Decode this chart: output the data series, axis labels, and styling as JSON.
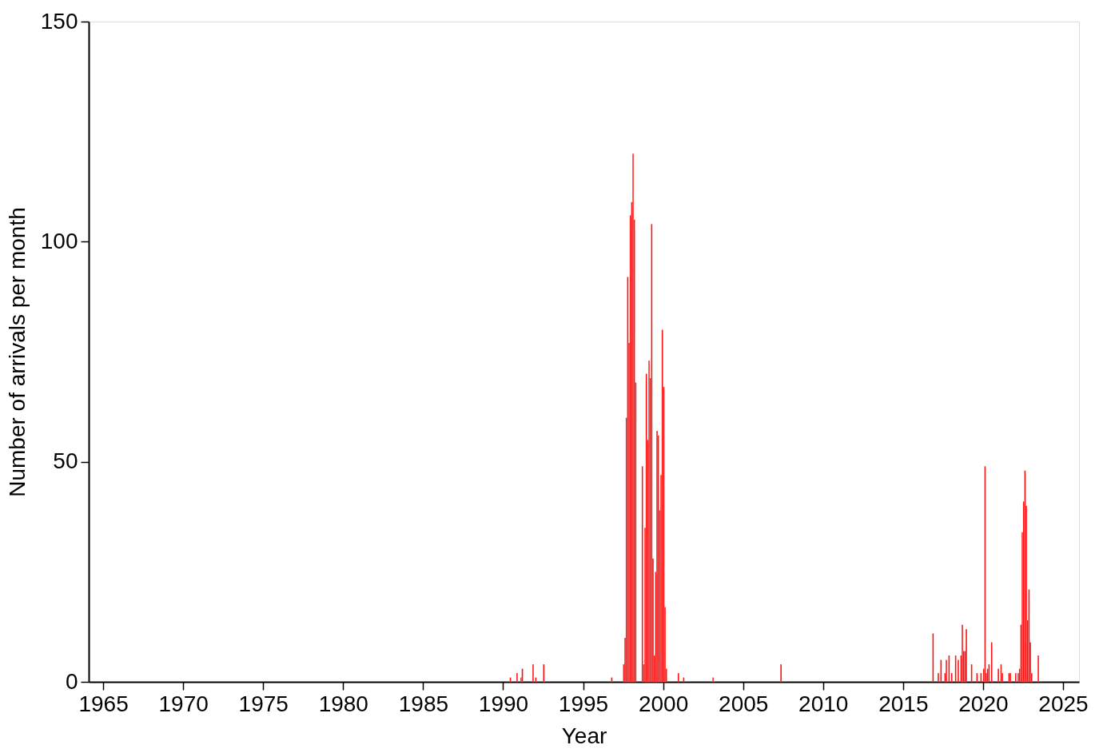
{
  "chart_data": {
    "type": "bar",
    "xlabel": "Year",
    "ylabel": "Number of arrivals per month",
    "color": "#ff0000",
    "x": [
      "1990-06",
      "1990-11",
      "1991-02",
      "1991-03",
      "1991-11",
      "1992-01",
      "1992-07",
      "1996-10",
      "1997-07",
      "1997-08",
      "1997-09",
      "1997-10",
      "1997-11",
      "1997-12",
      "1998-01",
      "1998-02",
      "1998-03",
      "1998-04",
      "1998-09",
      "1998-10",
      "1998-11",
      "1998-12",
      "1999-01",
      "1999-02",
      "1999-03",
      "1999-04",
      "1999-05",
      "1999-06",
      "1999-07",
      "1999-08",
      "1999-09",
      "1999-10",
      "1999-11",
      "1999-12",
      "2000-01",
      "2000-02",
      "2000-03",
      "2000-12",
      "2001-04",
      "2003-02",
      "2007-05",
      "2016-11",
      "2017-03",
      "2017-05",
      "2017-08",
      "2017-09",
      "2017-11",
      "2018-01",
      "2018-04",
      "2018-06",
      "2018-08",
      "2018-09",
      "2018-10",
      "2018-11",
      "2018-12",
      "2019-04",
      "2019-08",
      "2019-11",
      "2020-01",
      "2020-02",
      "2020-03",
      "2020-04",
      "2020-05",
      "2020-07",
      "2020-12",
      "2021-02",
      "2021-03",
      "2021-08",
      "2021-09",
      "2022-01",
      "2022-03",
      "2022-04",
      "2022-05",
      "2022-06",
      "2022-07",
      "2022-08",
      "2022-09",
      "2022-10",
      "2022-11",
      "2022-12",
      "2023-01",
      "2023-06"
    ],
    "values": [
      1,
      2,
      1,
      3,
      4,
      1,
      4,
      1,
      4,
      10,
      60,
      92,
      77,
      106,
      109,
      120,
      105,
      68,
      49,
      4,
      35,
      70,
      55,
      73,
      69,
      104,
      28,
      6,
      25,
      57,
      56,
      39,
      47,
      80,
      67,
      17,
      3,
      2,
      1,
      1,
      4,
      11,
      2,
      5,
      2,
      5,
      6,
      2,
      6,
      5,
      6,
      13,
      7,
      7,
      12,
      4,
      2,
      2,
      3,
      49,
      2,
      3,
      4,
      9,
      3,
      4,
      2,
      2,
      2,
      2,
      2,
      3,
      13,
      34,
      41,
      48,
      40,
      14,
      21,
      9,
      2,
      6
    ],
    "xlim": [
      "1964-02-06",
      "2026-01-01"
    ],
    "ylim": [
      0,
      150
    ],
    "xticks": [
      "1965",
      "1970",
      "1975",
      "1980",
      "1985",
      "1990",
      "1995",
      "2000",
      "2005",
      "2010",
      "2015",
      "2020",
      "2025"
    ],
    "yticks": [
      0,
      50,
      100,
      150
    ]
  }
}
